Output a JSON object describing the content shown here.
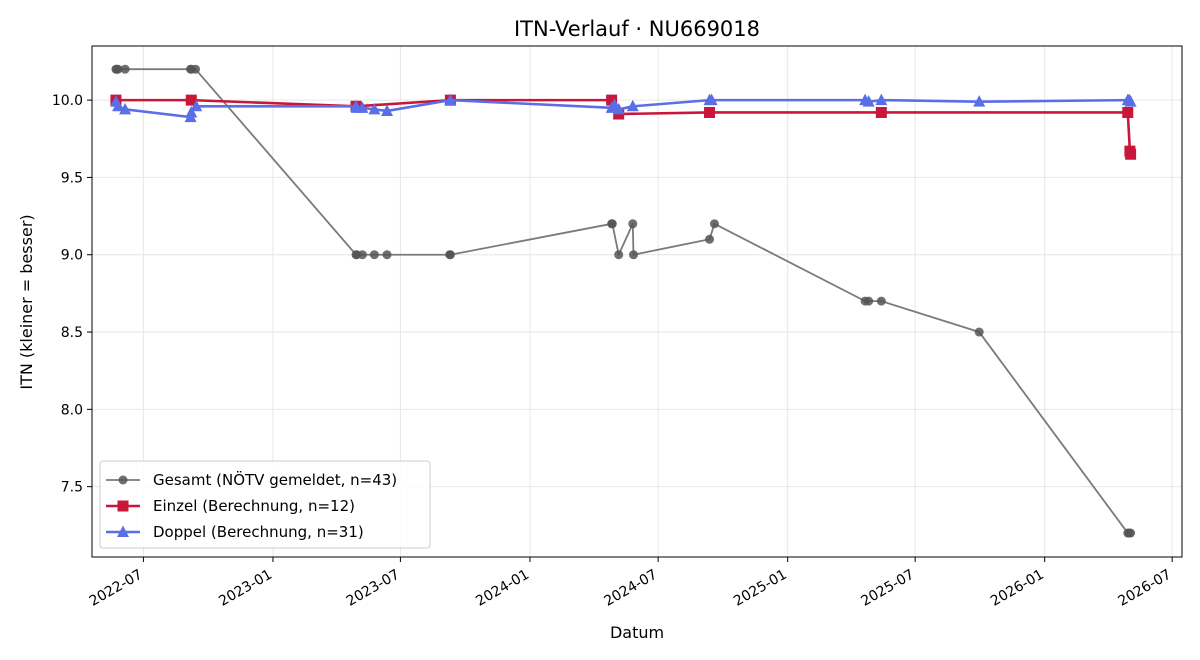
{
  "chart_data": {
    "type": "line",
    "title": "ITN-Verlauf · NU669018",
    "xlabel": "Datum",
    "ylabel": "ITN  (kleiner = besser)",
    "x_type": "date",
    "xlim": [
      "2022-04-19",
      "2026-07-15"
    ],
    "ylim": [
      7.045,
      10.35
    ],
    "x_ticks": [
      "2022-07-01",
      "2023-01-01",
      "2023-07-01",
      "2024-01-01",
      "2024-07-01",
      "2025-01-01",
      "2025-07-01",
      "2026-01-01",
      "2026-07-01"
    ],
    "x_tick_labels": [
      "2022-07",
      "2023-01",
      "2023-07",
      "2024-01",
      "2024-07",
      "2025-01",
      "2025-07",
      "2026-01",
      "2026-07"
    ],
    "y_ticks": [
      7.5,
      8.0,
      8.5,
      9.0,
      9.5,
      10.0
    ],
    "y_tick_labels": [
      "7.5",
      "8.0",
      "8.5",
      "9.0",
      "9.5",
      "10.0"
    ],
    "grid": true,
    "legend_position": "lower-left",
    "series": [
      {
        "name": "Gesamt (NÖTV gemeldet, n=43)",
        "color": "#7a7a7a",
        "marker": "circle",
        "points": [
          [
            "2022-05-23",
            10.2
          ],
          [
            "2022-05-24",
            10.2
          ],
          [
            "2022-05-26",
            10.2
          ],
          [
            "2022-06-05",
            10.2
          ],
          [
            "2022-09-06",
            10.2
          ],
          [
            "2022-09-07",
            10.2
          ],
          [
            "2022-09-13",
            10.2
          ],
          [
            "2023-04-29",
            9.0
          ],
          [
            "2023-04-30",
            9.0
          ],
          [
            "2023-05-08",
            9.0
          ],
          [
            "2023-05-25",
            9.0
          ],
          [
            "2023-06-12",
            9.0
          ],
          [
            "2023-09-09",
            9.0
          ],
          [
            "2023-09-10",
            9.0
          ],
          [
            "2024-04-26",
            9.2
          ],
          [
            "2024-04-27",
            9.2
          ],
          [
            "2024-05-06",
            9.0
          ],
          [
            "2024-05-26",
            9.2
          ],
          [
            "2024-05-27",
            9.0
          ],
          [
            "2024-09-12",
            9.1
          ],
          [
            "2024-09-19",
            9.2
          ],
          [
            "2025-04-21",
            8.7
          ],
          [
            "2025-04-26",
            8.7
          ],
          [
            "2025-05-14",
            8.7
          ],
          [
            "2025-09-30",
            8.5
          ],
          [
            "2026-04-29",
            7.2
          ],
          [
            "2026-05-01",
            7.2
          ],
          [
            "2026-05-03",
            7.2
          ]
        ]
      },
      {
        "name": "Einzel (Berechnung, n=12)",
        "color": "#c8173a",
        "marker": "square",
        "points": [
          [
            "2022-05-23",
            10.0
          ],
          [
            "2022-09-07",
            10.0
          ],
          [
            "2023-04-29",
            9.96
          ],
          [
            "2023-09-10",
            10.0
          ],
          [
            "2024-04-26",
            10.0
          ],
          [
            "2024-05-06",
            9.91
          ],
          [
            "2024-09-12",
            9.92
          ],
          [
            "2025-05-14",
            9.92
          ],
          [
            "2026-04-29",
            9.92
          ],
          [
            "2026-05-02",
            9.67
          ],
          [
            "2026-05-03",
            9.65
          ]
        ]
      },
      {
        "name": "Doppel (Berechnung, n=31)",
        "color": "#5a6ee6",
        "marker": "triangle",
        "points": [
          [
            "2022-05-23",
            9.99
          ],
          [
            "2022-05-26",
            9.96
          ],
          [
            "2022-06-05",
            9.94
          ],
          [
            "2022-09-06",
            9.89
          ],
          [
            "2022-09-07",
            9.92
          ],
          [
            "2022-09-14",
            9.96
          ],
          [
            "2023-04-29",
            9.96
          ],
          [
            "2023-04-30",
            9.95
          ],
          [
            "2023-05-08",
            9.95
          ],
          [
            "2023-05-25",
            9.94
          ],
          [
            "2023-06-12",
            9.93
          ],
          [
            "2023-09-10",
            10.0
          ],
          [
            "2024-04-26",
            9.95
          ],
          [
            "2024-04-30",
            9.97
          ],
          [
            "2024-05-06",
            9.94
          ],
          [
            "2024-05-26",
            9.96
          ],
          [
            "2024-09-12",
            10.0
          ],
          [
            "2024-09-15",
            10.0
          ],
          [
            "2025-04-21",
            10.0
          ],
          [
            "2025-04-26",
            9.99
          ],
          [
            "2025-05-14",
            10.0
          ],
          [
            "2025-09-30",
            9.99
          ],
          [
            "2026-04-29",
            10.0
          ],
          [
            "2026-05-01",
            10.0
          ],
          [
            "2026-05-03",
            9.99
          ]
        ]
      }
    ]
  }
}
